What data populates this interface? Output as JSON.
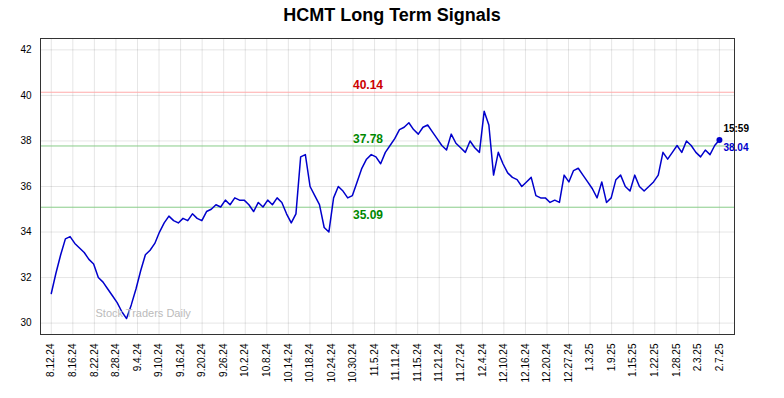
{
  "chart_data": {
    "type": "line",
    "title": "HCMT Long Term Signals",
    "color": "#0000cc",
    "values": [
      31.3,
      32.2,
      33.0,
      33.7,
      33.8,
      33.5,
      33.3,
      33.1,
      32.8,
      32.6,
      32.0,
      31.8,
      31.5,
      31.2,
      30.9,
      30.5,
      30.2,
      30.8,
      31.5,
      32.3,
      33.0,
      33.2,
      33.5,
      34.0,
      34.4,
      34.7,
      34.5,
      34.4,
      34.6,
      34.5,
      34.8,
      34.6,
      34.5,
      34.9,
      35.0,
      35.2,
      35.1,
      35.4,
      35.2,
      35.5,
      35.4,
      35.4,
      35.2,
      34.9,
      35.3,
      35.1,
      35.4,
      35.2,
      35.5,
      35.3,
      34.8,
      34.4,
      34.8,
      37.3,
      37.4,
      36.0,
      35.6,
      35.2,
      34.2,
      34.0,
      35.5,
      36.0,
      35.8,
      35.5,
      35.6,
      36.2,
      36.8,
      37.2,
      37.4,
      37.3,
      37.0,
      37.5,
      37.8,
      38.1,
      38.5,
      38.6,
      38.8,
      38.5,
      38.3,
      38.6,
      38.7,
      38.4,
      38.1,
      37.8,
      37.6,
      38.3,
      37.9,
      37.7,
      37.5,
      38.0,
      37.7,
      37.5,
      39.3,
      38.7,
      36.5,
      37.5,
      37.0,
      36.6,
      36.4,
      36.3,
      36.0,
      36.2,
      36.4,
      35.6,
      35.5,
      35.5,
      35.3,
      35.4,
      35.3,
      36.5,
      36.2,
      36.7,
      36.8,
      36.5,
      36.2,
      35.9,
      35.5,
      36.2,
      35.3,
      35.5,
      36.3,
      36.5,
      36.0,
      35.8,
      36.5,
      36.0,
      35.8,
      36.0,
      36.2,
      36.5,
      37.5,
      37.2,
      37.5,
      37.8,
      37.5,
      38.0,
      37.8,
      37.5,
      37.3,
      37.6,
      37.4,
      37.8,
      38.04
    ],
    "xlim": [
      -0.5,
      31.7
    ],
    "xticks": [
      {
        "value": 0,
        "label": "8.12.24"
      },
      {
        "value": 1,
        "label": "8.16.24"
      },
      {
        "value": 2,
        "label": "8.22.24"
      },
      {
        "value": 3,
        "label": "8.28.24"
      },
      {
        "value": 4,
        "label": "9.4.24"
      },
      {
        "value": 5,
        "label": "9.10.24"
      },
      {
        "value": 6,
        "label": "9.16.24"
      },
      {
        "value": 7,
        "label": "9.20.24"
      },
      {
        "value": 8,
        "label": "9.26.24"
      },
      {
        "value": 9,
        "label": "10.2.24"
      },
      {
        "value": 10,
        "label": "10.8.24"
      },
      {
        "value": 11,
        "label": "10.14.24"
      },
      {
        "value": 12,
        "label": "10.18.24"
      },
      {
        "value": 13,
        "label": "10.24.24"
      },
      {
        "value": 14,
        "label": "10.30.24"
      },
      {
        "value": 15,
        "label": "11.5.24"
      },
      {
        "value": 16,
        "label": "11.11.24"
      },
      {
        "value": 17,
        "label": "11.15.24"
      },
      {
        "value": 18,
        "label": "11.21.24"
      },
      {
        "value": 19,
        "label": "11.27.24"
      },
      {
        "value": 20,
        "label": "12.4.24"
      },
      {
        "value": 21,
        "label": "12.10.24"
      },
      {
        "value": 22,
        "label": "12.16.24"
      },
      {
        "value": 23,
        "label": "12.20.24"
      },
      {
        "value": 24,
        "label": "12.27.24"
      },
      {
        "value": 25,
        "label": "1.3.25"
      },
      {
        "value": 26,
        "label": "1.9.25"
      },
      {
        "value": 27,
        "label": "1.15.25"
      },
      {
        "value": 28,
        "label": "1.22.25"
      },
      {
        "value": 29,
        "label": "1.28.25"
      },
      {
        "value": 30,
        "label": "2.3.25"
      },
      {
        "value": 31,
        "label": "2.7.25"
      }
    ],
    "ylim": [
      29.5,
      42.5
    ],
    "yticks": [
      30,
      32,
      34,
      36,
      38,
      40,
      42
    ],
    "grid": true,
    "hlines": [
      {
        "value": 40.14,
        "color": "#ffaaaa",
        "label": "40.14",
        "label_color": "#cc0000",
        "label_x": "10.30.24"
      },
      {
        "value": 37.78,
        "color": "#88cc88",
        "label": "37.78",
        "label_color": "#008800",
        "label_x": "10.30.24"
      },
      {
        "value": 35.09,
        "color": "#88cc88",
        "label": "35.09",
        "label_color": "#008800",
        "label_x": "10.30.24"
      }
    ],
    "end_labels": [
      {
        "text": "15:59",
        "color": "#000000"
      },
      {
        "text": "38.04",
        "color": "#0000cc"
      }
    ],
    "watermark": "Stock Traders Daily"
  }
}
